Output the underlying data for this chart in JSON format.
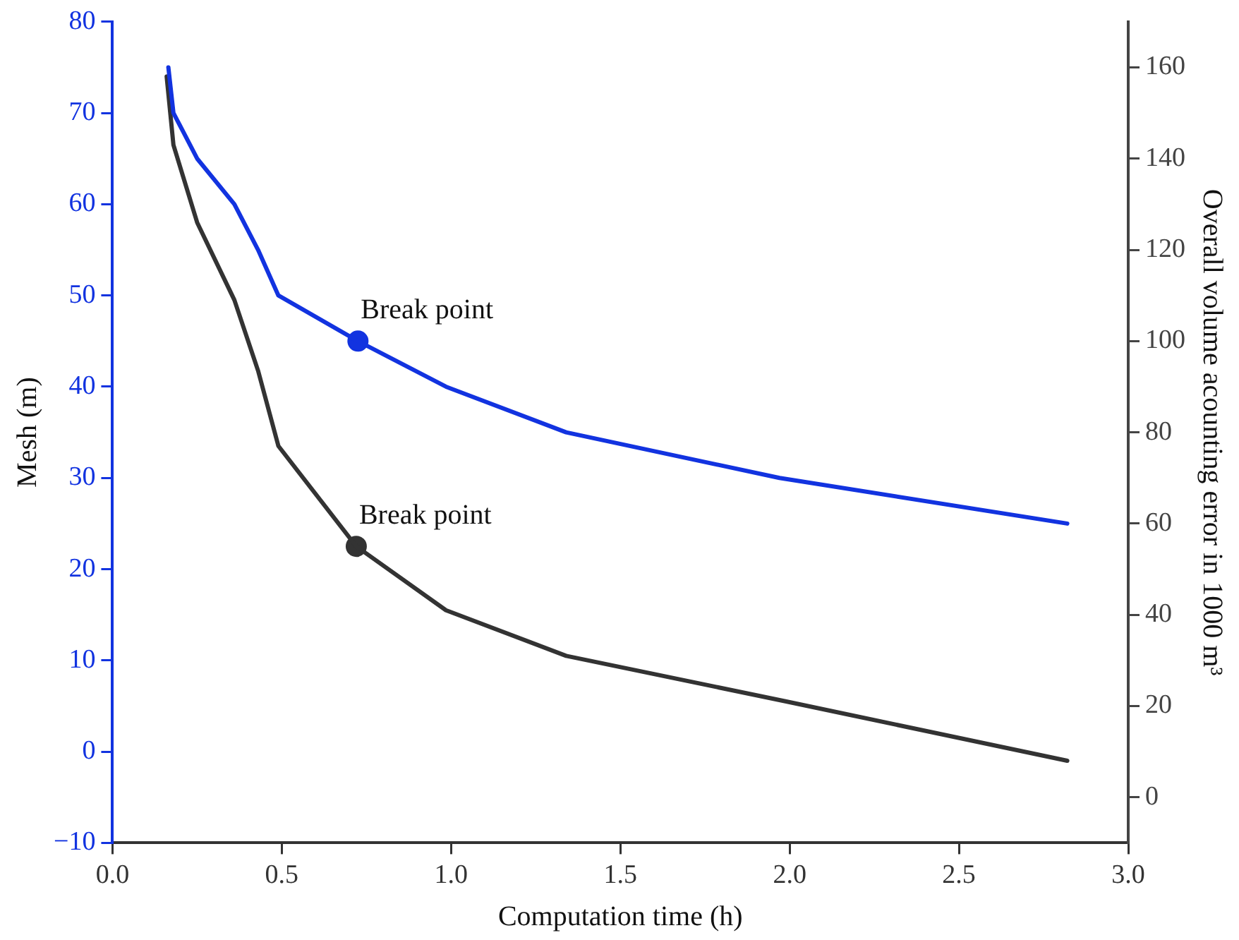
{
  "chart_data": {
    "type": "line",
    "xlabel": "Computation time (h)",
    "ylabel": "Mesh (m)",
    "y2label": "Overall volume acounting error in 1000 m³",
    "series": [
      {
        "color": "#1233e0",
        "marker": "none",
        "x": [
          0.165,
          0.18,
          0.25,
          0.36,
          0.43,
          0.49,
          0.725,
          0.985,
          1.34,
          1.97,
          2.82
        ],
        "values": [
          75,
          70,
          65,
          60,
          55,
          50,
          45,
          40,
          35,
          30,
          25
        ]
      },
      {
        "axis": "y2",
        "color": "#333333",
        "marker": "none",
        "x": [
          0.16,
          0.18,
          0.25,
          0.36,
          0.43,
          0.49,
          0.72,
          0.985,
          1.34,
          1.99,
          2.82
        ],
        "values": [
          158,
          143,
          126,
          109,
          93.5,
          77,
          55,
          41,
          31,
          21,
          8
        ]
      },
      {
        "type": "scatter",
        "color": "#1233e0",
        "marker": "circle",
        "x": [
          0.725
        ],
        "values": [
          45
        ]
      },
      {
        "type": "scatter",
        "axis": "y2",
        "color": "#333333",
        "marker": "circle",
        "x": [
          0.72
        ],
        "values": [
          55
        ]
      }
    ],
    "annotations": [
      {
        "text": "Break point",
        "x": 0.725,
        "y": 45
      },
      {
        "text": "Break point",
        "x": 0.72,
        "y": 22.5
      }
    ],
    "xlim": [
      0,
      3
    ],
    "xticks": [
      {
        "value": 0,
        "label": "0.0"
      },
      {
        "value": 0.5,
        "label": "0.5"
      },
      {
        "value": 1,
        "label": "1.0"
      },
      {
        "value": 1.5,
        "label": "1.5"
      },
      {
        "value": 2,
        "label": "2.0"
      },
      {
        "value": 2.5,
        "label": "2.5"
      },
      {
        "value": 3,
        "label": "3.0"
      }
    ],
    "ylim": [
      -10,
      80
    ],
    "yticks": [
      {
        "value": -10,
        "label": "−10"
      },
      0,
      10,
      20,
      30,
      40,
      50,
      60,
      70,
      80
    ],
    "y2lim": [
      -10,
      170
    ],
    "y2ticks": [
      0,
      20,
      40,
      60,
      80,
      100,
      120,
      140,
      160
    ],
    "grid": false,
    "legend": false
  }
}
